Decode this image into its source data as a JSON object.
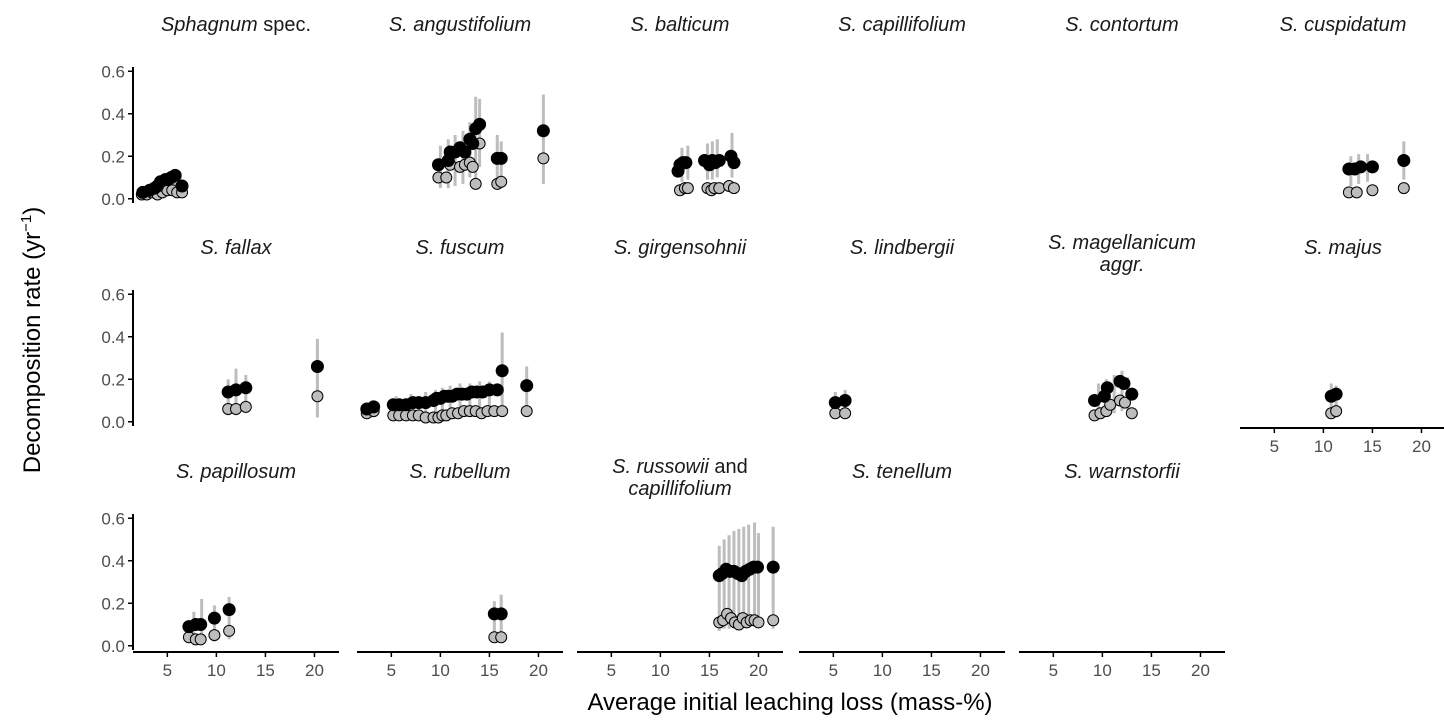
{
  "chart_data": {
    "type": "scatter",
    "xlabel": "Average initial leaching loss (mass-%)",
    "ylabel": "Decomposition rate (yr",
    "ylabel_sup": "−1",
    "ylabel_close": ")",
    "xlim": [
      1.5,
      22.5
    ],
    "ylim": [
      -0.02,
      0.62
    ],
    "x_ticks": [
      5,
      10,
      15,
      20
    ],
    "y_ticks": [
      0.0,
      0.2,
      0.4,
      0.6
    ],
    "y_tick_labels": [
      "0.0",
      "0.2",
      "0.4",
      "0.6"
    ],
    "grid": false,
    "legend": "none",
    "colors": {
      "upper": "#000000",
      "lower": "#bdbdbd",
      "errorbar": "#bdbdbd"
    },
    "panels": [
      {
        "title": "Sphagnum",
        "title_suffix": " spec.",
        "upper": [
          [
            2.5,
            0.03
          ],
          [
            3.2,
            0.04
          ],
          [
            3.7,
            0.05
          ],
          [
            4.0,
            0.06
          ],
          [
            4.3,
            0.08
          ],
          [
            4.8,
            0.09
          ],
          [
            5.1,
            0.09
          ],
          [
            5.4,
            0.1
          ],
          [
            5.8,
            0.11
          ],
          [
            6.5,
            0.06
          ]
        ],
        "lower": [
          [
            2.4,
            0.02
          ],
          [
            2.9,
            0.02
          ],
          [
            3.4,
            0.03
          ],
          [
            4.0,
            0.02
          ],
          [
            4.5,
            0.03
          ],
          [
            5.0,
            0.04
          ],
          [
            5.5,
            0.04
          ],
          [
            6.0,
            0.03
          ],
          [
            6.5,
            0.03
          ]
        ],
        "err": [
          [
            4.0,
            0.02,
            0.1
          ],
          [
            4.8,
            0.02,
            0.12
          ],
          [
            5.3,
            0.03,
            0.13
          ],
          [
            5.8,
            0.03,
            0.14
          ],
          [
            6.3,
            0.02,
            0.11
          ]
        ]
      },
      {
        "title": "S. angustifolium",
        "title_suffix": "",
        "upper": [
          [
            9.8,
            0.16
          ],
          [
            10.8,
            0.18
          ],
          [
            11.0,
            0.22
          ],
          [
            11.5,
            0.22
          ],
          [
            12.0,
            0.24
          ],
          [
            12.5,
            0.22
          ],
          [
            13.0,
            0.28
          ],
          [
            13.3,
            0.26
          ],
          [
            13.6,
            0.33
          ],
          [
            14.0,
            0.35
          ],
          [
            15.8,
            0.19
          ],
          [
            16.2,
            0.19
          ],
          [
            20.5,
            0.32
          ]
        ],
        "lower": [
          [
            9.8,
            0.1
          ],
          [
            10.6,
            0.1
          ],
          [
            11.0,
            0.16
          ],
          [
            12.0,
            0.15
          ],
          [
            12.5,
            0.16
          ],
          [
            13.0,
            0.17
          ],
          [
            13.3,
            0.15
          ],
          [
            13.6,
            0.07
          ],
          [
            14.0,
            0.26
          ],
          [
            15.8,
            0.07
          ],
          [
            16.2,
            0.08
          ],
          [
            20.5,
            0.19
          ]
        ],
        "err": [
          [
            10.0,
            0.05,
            0.25
          ],
          [
            10.8,
            0.05,
            0.28
          ],
          [
            11.5,
            0.06,
            0.3
          ],
          [
            12.3,
            0.07,
            0.32
          ],
          [
            13.0,
            0.1,
            0.36
          ],
          [
            13.6,
            0.05,
            0.48
          ],
          [
            14.0,
            0.15,
            0.47
          ],
          [
            15.8,
            0.05,
            0.3
          ],
          [
            16.2,
            0.05,
            0.27
          ],
          [
            20.5,
            0.07,
            0.49
          ]
        ]
      },
      {
        "title": "S. balticum",
        "title_suffix": "",
        "upper": [
          [
            11.8,
            0.13
          ],
          [
            12.0,
            0.16
          ],
          [
            12.3,
            0.17
          ],
          [
            12.6,
            0.17
          ],
          [
            14.5,
            0.18
          ],
          [
            15.0,
            0.16
          ],
          [
            15.3,
            0.18
          ],
          [
            15.6,
            0.17
          ],
          [
            16.0,
            0.18
          ],
          [
            17.2,
            0.2
          ],
          [
            17.5,
            0.17
          ]
        ],
        "lower": [
          [
            12.0,
            0.04
          ],
          [
            12.5,
            0.05
          ],
          [
            12.8,
            0.05
          ],
          [
            14.8,
            0.05
          ],
          [
            15.2,
            0.04
          ],
          [
            15.5,
            0.05
          ],
          [
            16.0,
            0.05
          ],
          [
            17.0,
            0.06
          ],
          [
            17.5,
            0.05
          ]
        ],
        "err": [
          [
            12.2,
            0.08,
            0.24
          ],
          [
            12.8,
            0.09,
            0.25
          ],
          [
            14.8,
            0.09,
            0.26
          ],
          [
            15.3,
            0.09,
            0.27
          ],
          [
            15.8,
            0.1,
            0.28
          ],
          [
            17.3,
            0.1,
            0.31
          ]
        ]
      },
      {
        "title": "S. capillifolium",
        "title_suffix": "",
        "upper": [],
        "lower": [],
        "err": []
      },
      {
        "title": "S. contortum",
        "title_suffix": "",
        "upper": [],
        "lower": [],
        "err": []
      },
      {
        "title": "S. cuspidatum",
        "title_suffix": "",
        "upper": [
          [
            12.6,
            0.14
          ],
          [
            13.2,
            0.14
          ],
          [
            13.8,
            0.15
          ],
          [
            15.0,
            0.15
          ],
          [
            18.2,
            0.18
          ]
        ],
        "lower": [
          [
            12.6,
            0.03
          ],
          [
            13.4,
            0.03
          ],
          [
            15.0,
            0.04
          ],
          [
            18.2,
            0.05
          ]
        ],
        "err": [
          [
            12.8,
            0.06,
            0.2
          ],
          [
            13.6,
            0.07,
            0.21
          ],
          [
            14.5,
            0.08,
            0.21
          ],
          [
            18.2,
            0.09,
            0.27
          ]
        ]
      },
      {
        "title": "S. fallax",
        "title_suffix": "",
        "upper": [
          [
            11.2,
            0.14
          ],
          [
            12.0,
            0.15
          ],
          [
            13.0,
            0.16
          ],
          [
            20.3,
            0.26
          ]
        ],
        "lower": [
          [
            11.2,
            0.06
          ],
          [
            12.0,
            0.06
          ],
          [
            13.0,
            0.07
          ],
          [
            20.3,
            0.12
          ]
        ],
        "err": [
          [
            11.2,
            0.03,
            0.2
          ],
          [
            12.0,
            0.03,
            0.25
          ],
          [
            13.0,
            0.04,
            0.22
          ],
          [
            20.3,
            0.02,
            0.39
          ]
        ]
      },
      {
        "title": "S. fuscum",
        "title_suffix": "",
        "upper": [
          [
            2.5,
            0.06
          ],
          [
            3.2,
            0.07
          ],
          [
            5.2,
            0.08
          ],
          [
            5.8,
            0.08
          ],
          [
            6.5,
            0.08
          ],
          [
            7.2,
            0.09
          ],
          [
            7.8,
            0.09
          ],
          [
            8.5,
            0.09
          ],
          [
            9.3,
            0.1
          ],
          [
            9.6,
            0.11
          ],
          [
            10.0,
            0.11
          ],
          [
            10.4,
            0.12
          ],
          [
            10.8,
            0.12
          ],
          [
            11.2,
            0.12
          ],
          [
            11.7,
            0.13
          ],
          [
            12.2,
            0.13
          ],
          [
            12.7,
            0.13
          ],
          [
            13.2,
            0.14
          ],
          [
            13.7,
            0.14
          ],
          [
            14.3,
            0.14
          ],
          [
            15.0,
            0.15
          ],
          [
            15.8,
            0.15
          ],
          [
            16.3,
            0.24
          ],
          [
            18.8,
            0.17
          ]
        ],
        "lower": [
          [
            2.5,
            0.04
          ],
          [
            3.2,
            0.05
          ],
          [
            5.2,
            0.03
          ],
          [
            5.8,
            0.03
          ],
          [
            6.5,
            0.03
          ],
          [
            7.2,
            0.03
          ],
          [
            7.8,
            0.03
          ],
          [
            8.5,
            0.02
          ],
          [
            9.3,
            0.02
          ],
          [
            9.8,
            0.02
          ],
          [
            10.2,
            0.03
          ],
          [
            10.6,
            0.03
          ],
          [
            11.2,
            0.04
          ],
          [
            11.8,
            0.04
          ],
          [
            12.4,
            0.05
          ],
          [
            13.0,
            0.05
          ],
          [
            13.6,
            0.05
          ],
          [
            14.2,
            0.04
          ],
          [
            14.8,
            0.05
          ],
          [
            15.5,
            0.05
          ],
          [
            16.3,
            0.05
          ],
          [
            18.8,
            0.05
          ]
        ],
        "err": [
          [
            3.0,
            0.02,
            0.1
          ],
          [
            5.5,
            0.02,
            0.12
          ],
          [
            7.0,
            0.02,
            0.13
          ],
          [
            8.5,
            0.02,
            0.14
          ],
          [
            9.5,
            0.02,
            0.15
          ],
          [
            10.2,
            0.02,
            0.16
          ],
          [
            11.0,
            0.02,
            0.17
          ],
          [
            12.0,
            0.03,
            0.18
          ],
          [
            13.0,
            0.03,
            0.18
          ],
          [
            14.0,
            0.03,
            0.19
          ],
          [
            15.0,
            0.03,
            0.19
          ],
          [
            16.3,
            0.03,
            0.42
          ],
          [
            18.8,
            0.03,
            0.26
          ]
        ]
      },
      {
        "title": "S. girgensohnii",
        "title_suffix": "",
        "upper": [],
        "lower": [],
        "err": []
      },
      {
        "title": "S. lindbergii",
        "title_suffix": "",
        "upper": [
          [
            5.2,
            0.09
          ],
          [
            6.2,
            0.1
          ]
        ],
        "lower": [
          [
            5.2,
            0.04
          ],
          [
            6.2,
            0.04
          ]
        ],
        "err": [
          [
            5.2,
            0.02,
            0.14
          ],
          [
            6.2,
            0.02,
            0.15
          ]
        ]
      },
      {
        "title": "S. magellanicum",
        "title2": "aggr.",
        "title_suffix": "",
        "upper": [
          [
            9.2,
            0.1
          ],
          [
            10.2,
            0.12
          ],
          [
            10.5,
            0.16
          ],
          [
            11.8,
            0.19
          ],
          [
            12.2,
            0.18
          ],
          [
            13.0,
            0.13
          ]
        ],
        "lower": [
          [
            9.2,
            0.03
          ],
          [
            9.8,
            0.04
          ],
          [
            10.4,
            0.05
          ],
          [
            10.8,
            0.08
          ],
          [
            11.8,
            0.1
          ],
          [
            12.3,
            0.09
          ],
          [
            13.0,
            0.04
          ]
        ],
        "err": [
          [
            9.6,
            0.02,
            0.18
          ],
          [
            10.4,
            0.03,
            0.2
          ],
          [
            11.2,
            0.04,
            0.22
          ],
          [
            12.0,
            0.05,
            0.24
          ],
          [
            12.6,
            0.05,
            0.21
          ]
        ]
      },
      {
        "title": "S. majus",
        "title_suffix": "",
        "upper": [
          [
            10.8,
            0.12
          ],
          [
            11.3,
            0.13
          ]
        ],
        "lower": [
          [
            10.8,
            0.04
          ],
          [
            11.3,
            0.05
          ]
        ],
        "err": [
          [
            10.8,
            0.02,
            0.18
          ],
          [
            11.3,
            0.02,
            0.17
          ]
        ]
      },
      {
        "title": "S. papillosum",
        "title_suffix": "",
        "upper": [
          [
            7.2,
            0.09
          ],
          [
            7.9,
            0.1
          ],
          [
            8.4,
            0.1
          ],
          [
            9.8,
            0.13
          ],
          [
            11.3,
            0.17
          ]
        ],
        "lower": [
          [
            7.2,
            0.04
          ],
          [
            7.9,
            0.03
          ],
          [
            8.4,
            0.03
          ],
          [
            9.8,
            0.05
          ],
          [
            11.3,
            0.07
          ]
        ],
        "err": [
          [
            7.7,
            0.02,
            0.16
          ],
          [
            8.5,
            0.02,
            0.22
          ],
          [
            9.8,
            0.02,
            0.19
          ],
          [
            11.3,
            0.03,
            0.23
          ]
        ]
      },
      {
        "title": "S. rubellum",
        "title_suffix": "",
        "upper": [
          [
            15.5,
            0.15
          ],
          [
            16.2,
            0.15
          ]
        ],
        "lower": [
          [
            15.5,
            0.04
          ],
          [
            16.2,
            0.04
          ]
        ],
        "err": [
          [
            15.5,
            0.02,
            0.21
          ],
          [
            16.2,
            0.02,
            0.24
          ]
        ]
      },
      {
        "title": "S. russowii",
        "title_suffix": " and",
        "title2": "capillifolium",
        "upper": [
          [
            16.0,
            0.33
          ],
          [
            16.3,
            0.34
          ],
          [
            16.7,
            0.36
          ],
          [
            17.1,
            0.35
          ],
          [
            17.5,
            0.35
          ],
          [
            17.9,
            0.34
          ],
          [
            18.3,
            0.33
          ],
          [
            18.7,
            0.35
          ],
          [
            19.1,
            0.36
          ],
          [
            19.5,
            0.37
          ],
          [
            19.9,
            0.37
          ],
          [
            21.5,
            0.37
          ]
        ],
        "lower": [
          [
            16.0,
            0.11
          ],
          [
            16.4,
            0.12
          ],
          [
            16.8,
            0.15
          ],
          [
            17.2,
            0.13
          ],
          [
            17.6,
            0.11
          ],
          [
            18.0,
            0.1
          ],
          [
            18.4,
            0.13
          ],
          [
            18.8,
            0.11
          ],
          [
            19.2,
            0.12
          ],
          [
            19.6,
            0.12
          ],
          [
            20.0,
            0.11
          ],
          [
            21.5,
            0.12
          ]
        ],
        "err": [
          [
            16.0,
            0.07,
            0.47
          ],
          [
            16.5,
            0.08,
            0.5
          ],
          [
            17.0,
            0.08,
            0.52
          ],
          [
            17.5,
            0.09,
            0.54
          ],
          [
            18.0,
            0.08,
            0.55
          ],
          [
            18.5,
            0.09,
            0.56
          ],
          [
            19.0,
            0.09,
            0.57
          ],
          [
            19.6,
            0.09,
            0.58
          ],
          [
            20.0,
            0.1,
            0.53
          ],
          [
            21.5,
            0.08,
            0.56
          ]
        ]
      },
      {
        "title": "S. tenellum",
        "title_suffix": "",
        "upper": [],
        "lower": [],
        "err": []
      },
      {
        "title": "S. warnstorfii",
        "title_suffix": "",
        "upper": [],
        "lower": [],
        "err": []
      }
    ]
  }
}
